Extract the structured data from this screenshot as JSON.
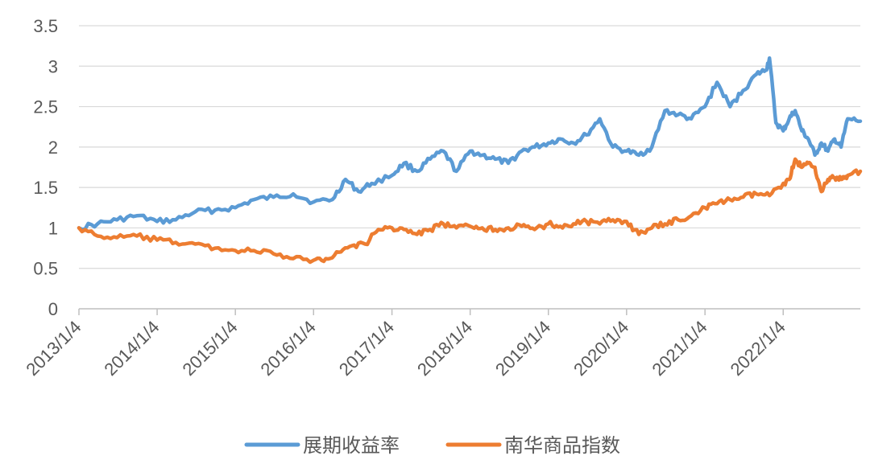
{
  "chart_data": {
    "type": "line",
    "ylim": [
      0,
      3.5
    ],
    "yticks": [
      "0",
      "0.5",
      "1",
      "1.5",
      "2",
      "2.5",
      "3",
      "3.5"
    ],
    "xticks": [
      "2013/1/4",
      "2014/1/4",
      "2015/1/4",
      "2016/1/4",
      "2017/1/4",
      "2018/1/4",
      "2019/1/4",
      "2020/1/4",
      "2021/1/4",
      "2022/1/4"
    ],
    "xlim": [
      "2013/1/4",
      "2022/12/30"
    ],
    "grid": true,
    "legend": "bottom",
    "series": [
      {
        "name": "展期收益率",
        "color": "#5B9BD5",
        "x": [
          "2013/1/4",
          "2013/4/1",
          "2013/7/1",
          "2013/10/1",
          "2014/1/4",
          "2014/4/1",
          "2014/7/1",
          "2014/10/1",
          "2015/1/4",
          "2015/4/1",
          "2015/7/1",
          "2015/10/1",
          "2016/1/4",
          "2016/4/1",
          "2016/6/1",
          "2016/8/1",
          "2016/10/1",
          "2017/1/4",
          "2017/3/1",
          "2017/5/1",
          "2017/7/1",
          "2017/9/1",
          "2017/11/1",
          "2018/1/4",
          "2018/3/1",
          "2018/5/1",
          "2018/7/1",
          "2018/9/1",
          "2018/11/1",
          "2019/1/4",
          "2019/3/1",
          "2019/5/1",
          "2019/7/1",
          "2019/9/1",
          "2019/11/1",
          "2020/1/4",
          "2020/3/1",
          "2020/5/1",
          "2020/7/1",
          "2020/9/1",
          "2020/11/1",
          "2021/1/4",
          "2021/3/1",
          "2021/5/1",
          "2021/7/1",
          "2021/9/1",
          "2021/10/15",
          "2021/11/1",
          "2021/12/1",
          "2022/1/4",
          "2022/2/1",
          "2022/3/1",
          "2022/4/1",
          "2022/5/1",
          "2022/6/1",
          "2022/7/1",
          "2022/8/1",
          "2022/9/1",
          "2022/10/1",
          "2022/11/1",
          "2022/12/30"
        ],
        "values": [
          1.0,
          1.05,
          1.1,
          1.15,
          1.08,
          1.1,
          1.2,
          1.22,
          1.25,
          1.35,
          1.38,
          1.42,
          1.32,
          1.35,
          1.6,
          1.45,
          1.55,
          1.65,
          1.8,
          1.7,
          1.85,
          1.95,
          1.7,
          1.95,
          1.9,
          1.85,
          1.8,
          1.95,
          2.0,
          2.05,
          2.1,
          2.05,
          2.15,
          2.35,
          2.0,
          1.95,
          1.9,
          2.0,
          2.45,
          2.4,
          2.35,
          2.5,
          2.8,
          2.5,
          2.7,
          2.9,
          2.95,
          3.1,
          2.3,
          2.2,
          2.35,
          2.45,
          2.2,
          2.1,
          1.9,
          2.05,
          1.95,
          2.1,
          2.0,
          2.35,
          2.32
        ]
      },
      {
        "name": "南华商品指数",
        "color": "#ED7D31",
        "x": [
          "2013/1/4",
          "2013/4/1",
          "2013/7/1",
          "2013/10/1",
          "2014/1/4",
          "2014/4/1",
          "2014/7/1",
          "2014/10/1",
          "2015/1/4",
          "2015/4/1",
          "2015/7/1",
          "2015/10/1",
          "2016/1/4",
          "2016/3/1",
          "2016/5/1",
          "2016/7/1",
          "2016/9/1",
          "2016/11/1",
          "2017/1/4",
          "2017/3/1",
          "2017/5/1",
          "2017/7/1",
          "2017/9/1",
          "2017/11/1",
          "2018/1/4",
          "2018/3/1",
          "2018/5/1",
          "2018/7/1",
          "2018/9/1",
          "2018/11/1",
          "2019/1/4",
          "2019/3/1",
          "2019/5/1",
          "2019/7/1",
          "2019/9/1",
          "2019/11/1",
          "2020/1/4",
          "2020/3/1",
          "2020/5/1",
          "2020/7/1",
          "2020/9/1",
          "2020/11/1",
          "2021/1/4",
          "2021/3/1",
          "2021/5/1",
          "2021/7/1",
          "2021/9/1",
          "2021/11/1",
          "2022/1/4",
          "2022/2/1",
          "2022/3/1",
          "2022/4/1",
          "2022/5/1",
          "2022/6/1",
          "2022/7/1",
          "2022/8/1",
          "2022/9/1",
          "2022/10/1",
          "2022/11/1",
          "2022/12/30"
        ],
        "values": [
          1.0,
          0.9,
          0.88,
          0.9,
          0.85,
          0.82,
          0.8,
          0.75,
          0.72,
          0.72,
          0.68,
          0.62,
          0.6,
          0.62,
          0.7,
          0.78,
          0.8,
          0.98,
          1.0,
          0.98,
          0.92,
          0.98,
          1.05,
          1.0,
          1.02,
          1.0,
          0.98,
          1.0,
          1.02,
          0.98,
          1.05,
          1.02,
          1.05,
          1.08,
          1.05,
          1.1,
          1.08,
          0.92,
          1.0,
          1.05,
          1.1,
          1.15,
          1.25,
          1.3,
          1.35,
          1.38,
          1.42,
          1.4,
          1.55,
          1.6,
          1.85,
          1.75,
          1.8,
          1.75,
          1.45,
          1.6,
          1.62,
          1.6,
          1.65,
          1.7
        ]
      }
    ]
  }
}
